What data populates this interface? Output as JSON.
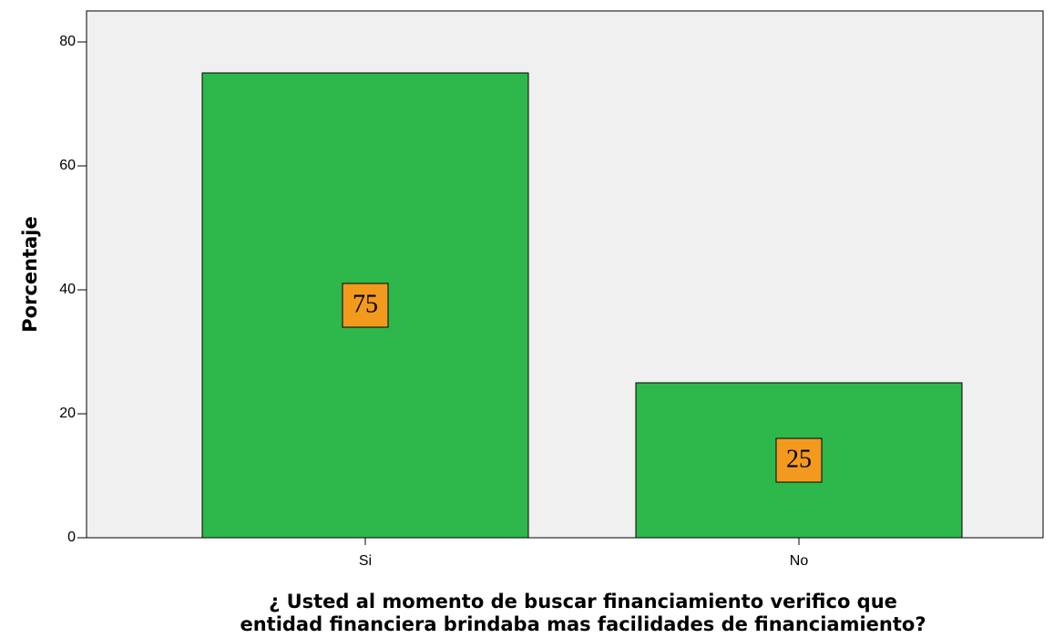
{
  "chart_data": {
    "type": "bar",
    "categories": [
      "Si",
      "No"
    ],
    "values": [
      75,
      25
    ],
    "color": "#2eb84b",
    "label_box_color": "#f39a1e",
    "ylabel": "Porcentaje",
    "xlabel": [
      "¿ Usted al momento de buscar financiamiento verifico que",
      "entidad financiera brindaba mas facilidades de financiamiento?"
    ],
    "ylim": [
      0,
      85
    ],
    "yticks": [
      0,
      20,
      40,
      60,
      80
    ],
    "grid": false
  }
}
